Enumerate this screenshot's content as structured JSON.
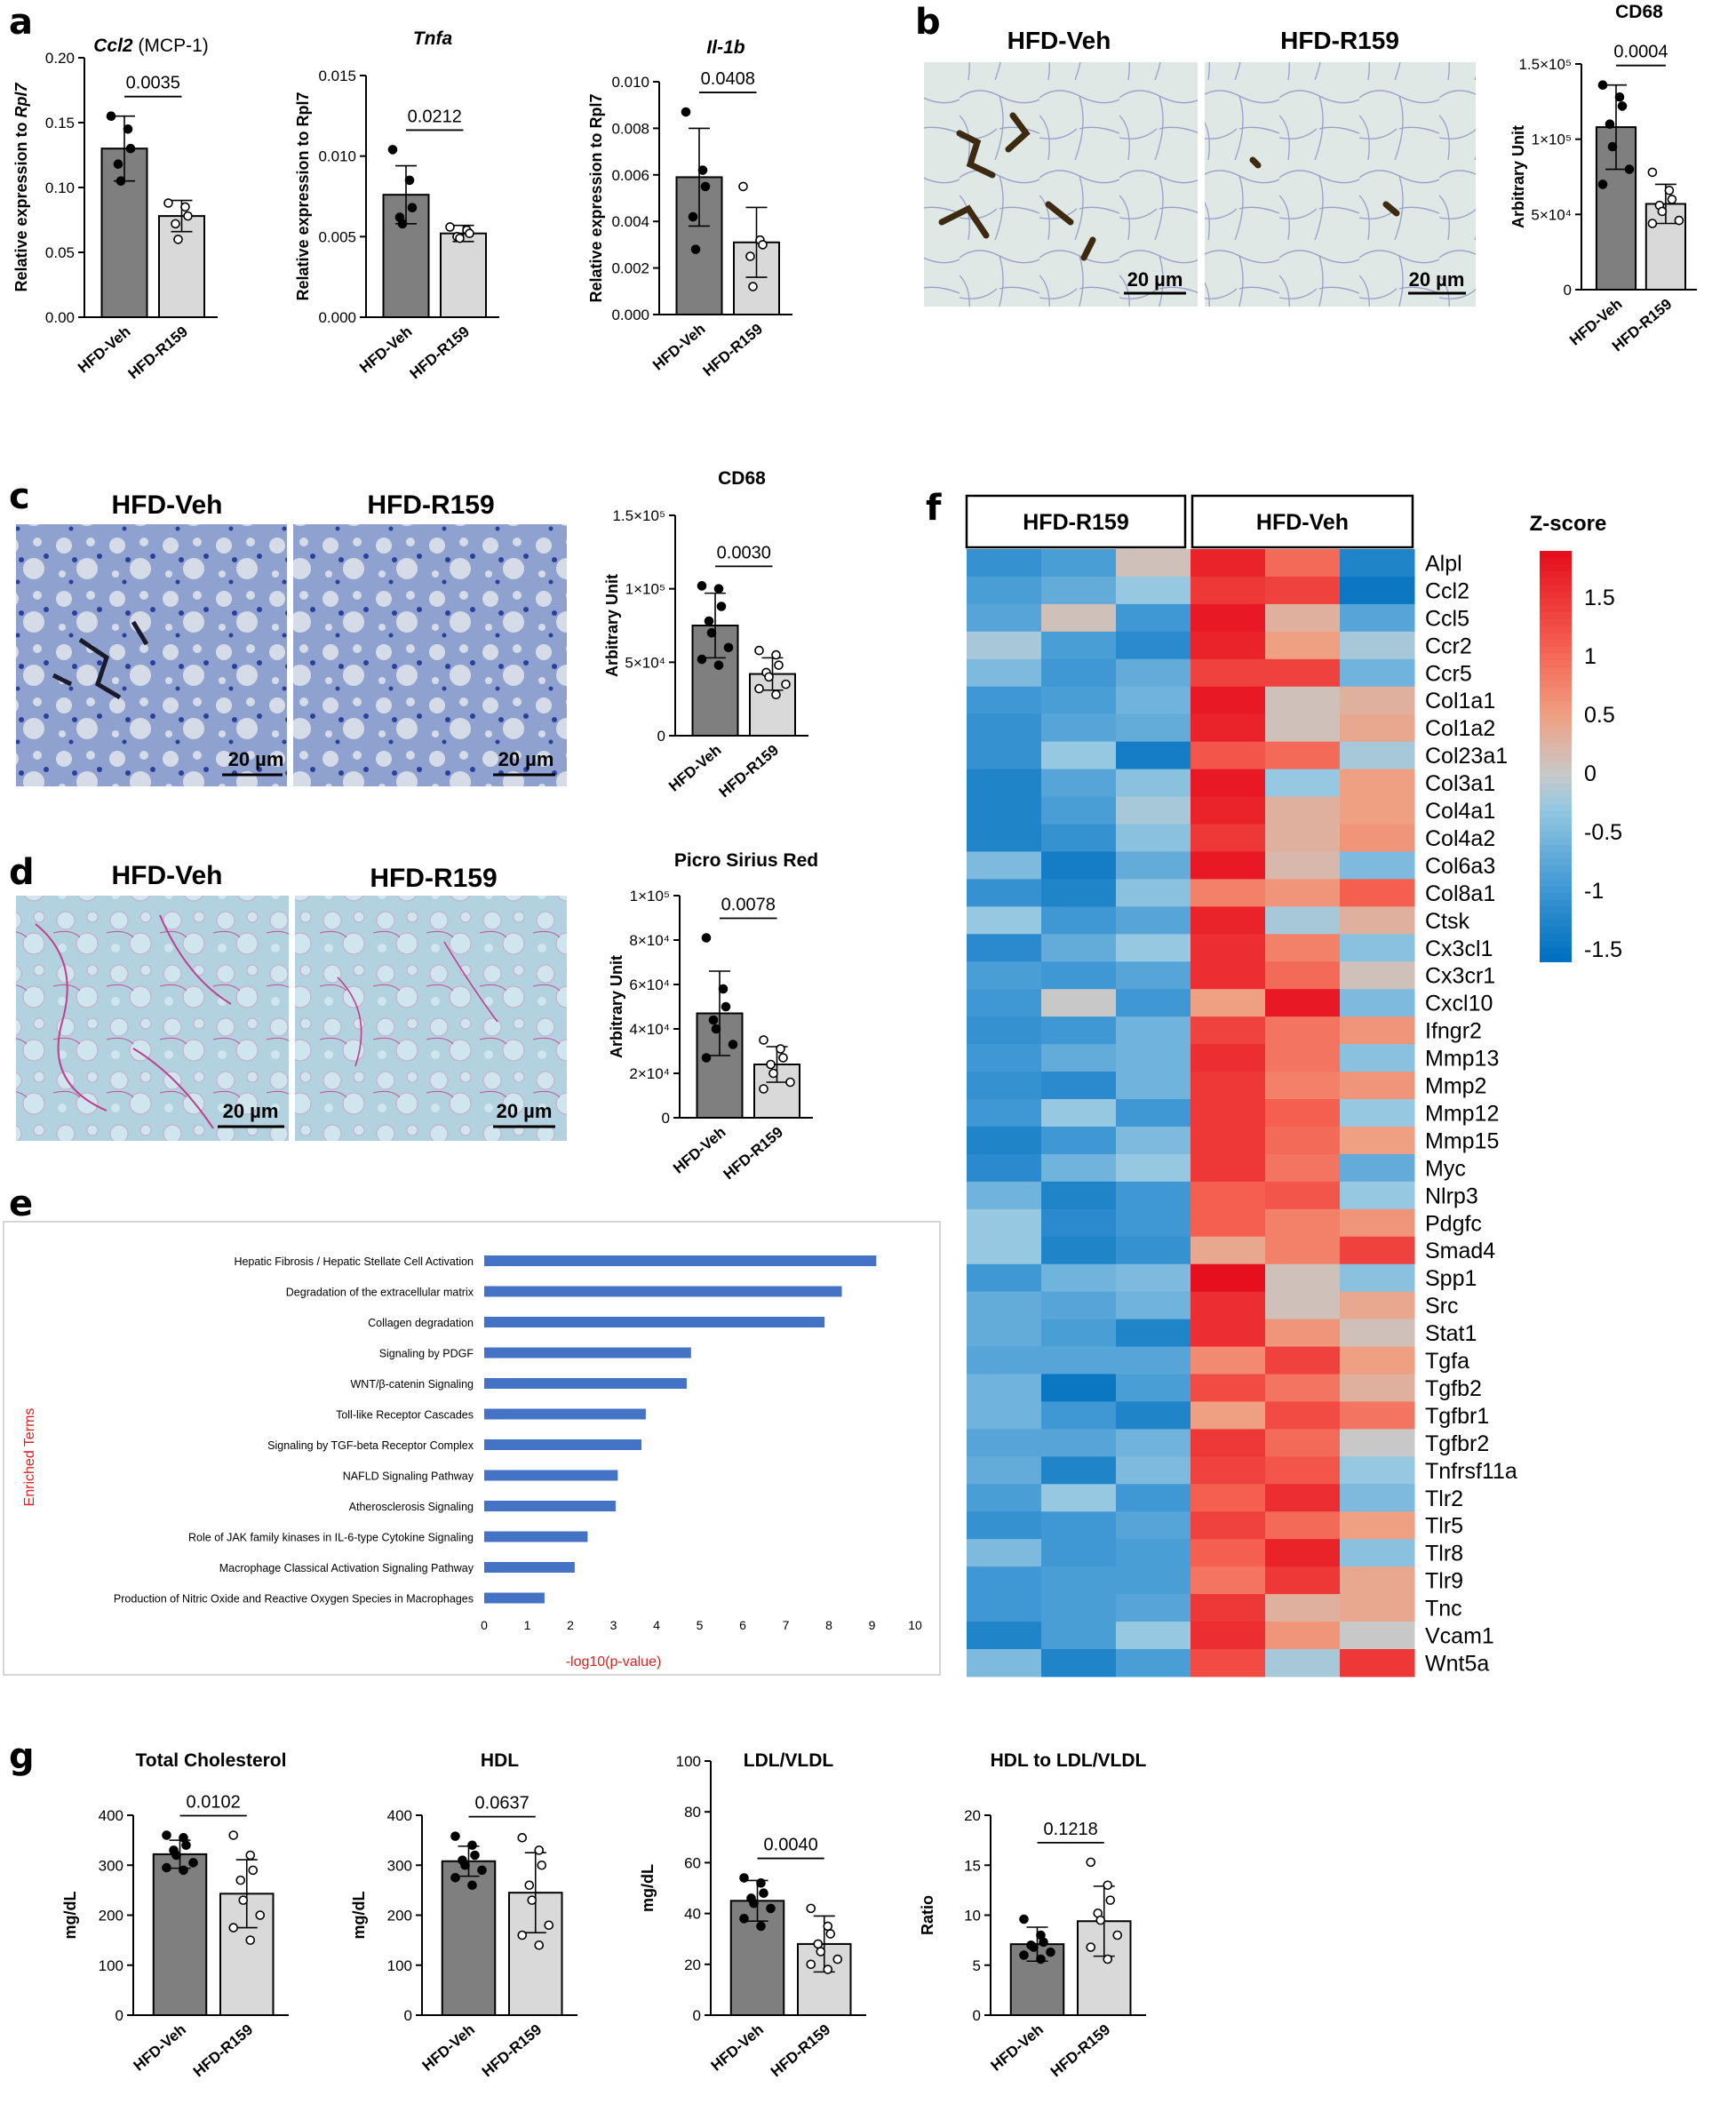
{
  "groups": [
    "HFD-Veh",
    "HFD-R159"
  ],
  "colors": {
    "veh_bar": "#7f7f7f",
    "r159_bar": "#d9d9d9",
    "enrich_bar": "#4472c4",
    "enrich_ylabel": "#e02020"
  },
  "panel_labels": {
    "a": "a",
    "b": "b",
    "c": "c",
    "d": "d",
    "e": "e",
    "f": "f",
    "g": "g"
  },
  "scale_bar": "20 µm",
  "histology": {
    "b": {
      "left": "HFD-Veh",
      "right": "HFD-R159",
      "scale": "20 µm"
    },
    "c": {
      "left": "HFD-Veh",
      "right": "HFD-R159",
      "scale": "20 µm"
    },
    "d": {
      "left": "HFD-Veh",
      "right": "HFD-R159",
      "scale": "20 µm"
    }
  },
  "chart_data": [
    {
      "id": "a1",
      "type": "bar",
      "title_italic": "Ccl2",
      "title_rest": " (MCP-1)",
      "ylabel": "Relative expression to ",
      "ylabel_italic": "Rpl7",
      "categories": [
        "HFD-Veh",
        "HFD-R159"
      ],
      "values": [
        0.13,
        0.078
      ],
      "sd": [
        0.025,
        0.012
      ],
      "ylim": [
        0,
        0.2
      ],
      "ticks": [
        "0.00",
        "0.05",
        "0.10",
        "0.15",
        "0.20"
      ],
      "p": "0.0035",
      "points": [
        [
          0.155,
          0.145,
          0.13,
          0.118,
          0.105
        ],
        [
          0.088,
          0.085,
          0.078,
          0.072,
          0.06
        ]
      ]
    },
    {
      "id": "a2",
      "type": "bar",
      "title_italic": "Tnfa",
      "title_rest": "",
      "ylabel": "Relative expression to Rpl7",
      "ylabel_italic": "",
      "categories": [
        "HFD-Veh",
        "HFD-R159"
      ],
      "values": [
        0.0076,
        0.0052
      ],
      "sd": [
        0.0018,
        0.0005
      ],
      "ylim": [
        0,
        0.015
      ],
      "ticks": [
        "0.000",
        "0.005",
        "0.010",
        "0.015"
      ],
      "p": "0.0212",
      "points": [
        [
          0.0104,
          0.0085,
          0.0068,
          0.0062,
          0.0058
        ],
        [
          0.0056,
          0.0054,
          0.0052,
          0.005,
          0.0049
        ]
      ]
    },
    {
      "id": "a3",
      "type": "bar",
      "title_italic": "Il-1b",
      "title_rest": "",
      "ylabel": "Relative expression to Rpl7",
      "ylabel_italic": "",
      "categories": [
        "HFD-Veh",
        "HFD-R159"
      ],
      "values": [
        0.0059,
        0.0031
      ],
      "sd": [
        0.0021,
        0.0015
      ],
      "ylim": [
        0,
        0.01
      ],
      "ticks": [
        "0.000",
        "0.002",
        "0.004",
        "0.006",
        "0.008",
        "0.010"
      ],
      "p": "0.0408",
      "points": [
        [
          0.0087,
          0.0062,
          0.0055,
          0.0042,
          0.0028
        ],
        [
          0.0055,
          0.0032,
          0.003,
          0.0025,
          0.0012
        ]
      ]
    },
    {
      "id": "b",
      "type": "bar",
      "title_italic": "",
      "title_rest": "CD68",
      "ylabel": "Arbitrary Unit",
      "ylabel_italic": "",
      "categories": [
        "HFD-Veh",
        "HFD-R159"
      ],
      "values": [
        108000,
        57000
      ],
      "sd": [
        28000,
        13000
      ],
      "ylim": [
        0,
        150000
      ],
      "ticks": [
        "0",
        "5×10⁴",
        "1×10⁵",
        "1.5×10⁵"
      ],
      "p": "0.0004",
      "points": [
        [
          136000,
          128000,
          122000,
          110000,
          95000,
          80000,
          70000
        ],
        [
          78000,
          66000,
          60000,
          56000,
          52000,
          46000,
          44000
        ]
      ]
    },
    {
      "id": "c",
      "type": "bar",
      "title_italic": "",
      "title_rest": "CD68",
      "ylabel": "Arbitrary Unit",
      "ylabel_italic": "",
      "categories": [
        "HFD-Veh",
        "HFD-R159"
      ],
      "values": [
        75000,
        42000
      ],
      "sd": [
        22000,
        11000
      ],
      "ylim": [
        0,
        150000
      ],
      "ticks": [
        "0",
        "5×10⁴",
        "1×10⁵",
        "1.5×10⁵"
      ],
      "p": "0.0030",
      "points": [
        [
          102000,
          100000,
          88000,
          78000,
          70000,
          60000,
          52000,
          48000
        ],
        [
          58000,
          55000,
          48000,
          43000,
          40000,
          35000,
          32000,
          28000
        ]
      ]
    },
    {
      "id": "d",
      "type": "bar",
      "title_italic": "",
      "title_rest": "Picro Sirius Red",
      "ylabel": "Arbitrary Unit",
      "ylabel_italic": "",
      "categories": [
        "HFD-Veh",
        "HFD-R159"
      ],
      "values": [
        47000,
        24000
      ],
      "sd": [
        19000,
        8000
      ],
      "ylim": [
        0,
        100000
      ],
      "ticks": [
        "0",
        "2×10⁴",
        "4×10⁴",
        "6×10⁴",
        "8×10⁴",
        "1×10⁵"
      ],
      "p": "0.0078",
      "points": [
        [
          81000,
          58000,
          50000,
          44000,
          40000,
          33000,
          27000
        ],
        [
          35000,
          31000,
          27000,
          24000,
          20000,
          16000,
          13000
        ]
      ]
    },
    {
      "id": "g1",
      "type": "bar",
      "title_italic": "",
      "title_rest": "Total Cholesterol",
      "ylabel": "mg/dL",
      "ylabel_italic": "",
      "categories": [
        "HFD-Veh",
        "HFD-R159"
      ],
      "values": [
        322,
        243
      ],
      "sd": [
        28,
        68
      ],
      "ylim": [
        0,
        400
      ],
      "ticks": [
        "0",
        "100",
        "200",
        "300",
        "400"
      ],
      "p": "0.0102",
      "points": [
        [
          360,
          355,
          340,
          330,
          320,
          305,
          295,
          290
        ],
        [
          360,
          320,
          290,
          270,
          230,
          200,
          175,
          150
        ]
      ]
    },
    {
      "id": "g2",
      "type": "bar",
      "title_italic": "",
      "title_rest": "HDL",
      "ylabel": "mg/dL",
      "ylabel_italic": "",
      "categories": [
        "HFD-Veh",
        "HFD-R159"
      ],
      "values": [
        308,
        245
      ],
      "sd": [
        30,
        80
      ],
      "ylim": [
        0,
        400
      ],
      "ticks": [
        "0",
        "100",
        "200",
        "300",
        "400"
      ],
      "p": "0.0637",
      "points": [
        [
          358,
          340,
          320,
          310,
          300,
          290,
          275,
          260
        ],
        [
          355,
          330,
          300,
          260,
          230,
          180,
          160,
          140
        ]
      ]
    },
    {
      "id": "g3",
      "type": "bar",
      "title_italic": "",
      "title_rest": "LDL/VLDL",
      "ylabel": "mg/dL",
      "ylabel_italic": "",
      "categories": [
        "HFD-Veh",
        "HFD-R159"
      ],
      "values": [
        45,
        28
      ],
      "sd": [
        8,
        11
      ],
      "ylim": [
        0,
        100
      ],
      "ticks": [
        "0",
        "20",
        "40",
        "60",
        "80",
        "100"
      ],
      "p": "0.0040",
      "points": [
        [
          54,
          52,
          48,
          46,
          44,
          42,
          38,
          35
        ],
        [
          42,
          35,
          32,
          28,
          25,
          22,
          20,
          18
        ]
      ]
    },
    {
      "id": "g4",
      "type": "bar",
      "title_italic": "",
      "title_rest": "HDL to LDL/VLDL",
      "ylabel": "Ratio",
      "ylabel_italic": "",
      "categories": [
        "HFD-Veh",
        "HFD-R159"
      ],
      "values": [
        7.1,
        9.4
      ],
      "sd": [
        1.7,
        3.5
      ],
      "ylim": [
        0,
        20
      ],
      "ticks": [
        "0",
        "5",
        "10",
        "15",
        "20"
      ],
      "p": "0.1218",
      "points": [
        [
          9.6,
          8,
          7.3,
          7,
          6.8,
          6.3,
          6,
          5.6
        ],
        [
          15.3,
          13,
          11.5,
          10.2,
          9.5,
          8,
          6.8,
          5.6
        ]
      ]
    },
    {
      "id": "e",
      "type": "hbar",
      "ylabel": "Enriched Terms",
      "xlabel": "-log10(p-value)",
      "xlim": [
        0,
        10
      ],
      "xticks": [
        "0",
        "1",
        "2",
        "3",
        "4",
        "5",
        "6",
        "7",
        "8",
        "9",
        "10"
      ],
      "categories": [
        "Hepatic Fibrosis / Hepatic Stellate Cell Activation",
        "Degradation of the extracellular matrix",
        "Collagen degradation",
        "Signaling by PDGF",
        "WNT/β-catenin Signaling",
        "Toll-like Receptor Cascades",
        "Signaling by TGF-beta Receptor Complex",
        "NAFLD Signaling Pathway",
        "Atherosclerosis Signaling",
        "Role of JAK family kinases in IL-6-type Cytokine Signaling",
        "Macrophage Classical Activation Signaling Pathway",
        "Production of Nitric Oxide and Reactive Oxygen Species in Macrophages"
      ],
      "values": [
        9.1,
        8.3,
        7.9,
        4.8,
        4.7,
        3.75,
        3.65,
        3.1,
        3.05,
        2.4,
        2.1,
        1.4
      ]
    },
    {
      "id": "f",
      "type": "heatmap",
      "group_labels": [
        "HFD-R159",
        "HFD-Veh"
      ],
      "legend_title": "Z-score",
      "legend_ticks": [
        "1.5",
        "1",
        "0.5",
        "0",
        "-0.5",
        "-1",
        "-1.5"
      ],
      "zlim": [
        -1.6,
        1.9
      ],
      "genes": [
        "Alpl",
        "Ccl2",
        "Ccl5",
        "Ccr2",
        "Ccr5",
        "Col1a1",
        "Col1a2",
        "Col23a1",
        "Col3a1",
        "Col4a1",
        "Col4a2",
        "Col6a3",
        "Col8a1",
        "Ctsk",
        "Cx3cl1",
        "Cx3cr1",
        "Cxcl10",
        "Ifngr2",
        "Mmp13",
        "Mmp2",
        "Mmp12",
        "Mmp15",
        "Myc",
        "Nlrp3",
        "Pdgfc",
        "Smad4",
        "Spp1",
        "Src",
        "Stat1",
        "Tgfa",
        "Tgfb2",
        "Tgfbr1",
        "Tgfbr2",
        "Tnfrsf11a",
        "Tlr2",
        "Tlr5",
        "Tlr8",
        "Tlr9",
        "Tnc",
        "Vcam1",
        "Wnt5a"
      ],
      "values": [
        [
          -1.1,
          -0.9,
          0.1,
          1.7,
          1.0,
          -1.3
        ],
        [
          -0.9,
          -0.7,
          -0.3,
          1.5,
          1.4,
          -1.5
        ],
        [
          -0.8,
          0.1,
          -1.0,
          1.8,
          0.3,
          -0.8
        ],
        [
          -0.2,
          -0.9,
          -1.2,
          1.7,
          0.5,
          -0.2
        ],
        [
          -0.5,
          -1.0,
          -0.7,
          1.4,
          1.4,
          -0.6
        ],
        [
          -1.0,
          -0.9,
          -0.6,
          1.8,
          0.1,
          0.3
        ],
        [
          -1.1,
          -0.8,
          -0.7,
          1.7,
          0.1,
          0.4
        ],
        [
          -1.1,
          -0.3,
          -1.4,
          1.2,
          1.0,
          -0.2
        ],
        [
          -1.3,
          -0.8,
          -0.4,
          1.8,
          -0.3,
          0.5
        ],
        [
          -1.3,
          -0.9,
          -0.2,
          1.7,
          0.3,
          0.5
        ],
        [
          -1.3,
          -1.1,
          -0.4,
          1.5,
          0.3,
          0.6
        ],
        [
          -0.5,
          -1.4,
          -0.7,
          1.8,
          0.2,
          -0.5
        ],
        [
          -1.1,
          -1.3,
          -0.4,
          0.8,
          0.6,
          1.1
        ],
        [
          -0.3,
          -1.0,
          -0.8,
          1.7,
          -0.2,
          0.3
        ],
        [
          -1.2,
          -0.7,
          -0.3,
          1.6,
          0.8,
          -0.4
        ],
        [
          -0.9,
          -1.0,
          -0.8,
          1.6,
          1.0,
          0.1
        ],
        [
          -1.0,
          0.0,
          -1.0,
          0.5,
          1.8,
          -0.5
        ],
        [
          -1.1,
          -1.0,
          -0.6,
          1.4,
          0.9,
          0.6
        ],
        [
          -1.0,
          -0.7,
          -0.6,
          1.6,
          0.9,
          -0.4
        ],
        [
          -1.1,
          -1.2,
          -0.6,
          1.5,
          0.8,
          0.6
        ],
        [
          -1.0,
          -0.3,
          -1.0,
          1.5,
          1.1,
          -0.3
        ],
        [
          -1.3,
          -1.0,
          -0.5,
          1.5,
          1.0,
          0.5
        ],
        [
          -1.2,
          -0.6,
          -0.3,
          1.5,
          0.9,
          -0.7
        ],
        [
          -0.6,
          -1.3,
          -1.0,
          1.1,
          1.2,
          -0.3
        ],
        [
          -0.3,
          -1.2,
          -1.0,
          1.1,
          0.8,
          0.6
        ],
        [
          -0.3,
          -1.3,
          -1.1,
          0.4,
          0.8,
          1.4
        ],
        [
          -1.0,
          -0.6,
          -0.5,
          1.9,
          0.1,
          -0.4
        ],
        [
          -0.7,
          -0.8,
          -0.6,
          1.6,
          0.1,
          0.4
        ],
        [
          -0.7,
          -0.9,
          -1.3,
          1.6,
          0.6,
          0.1
        ],
        [
          -0.8,
          -0.8,
          -0.8,
          0.7,
          1.4,
          0.5
        ],
        [
          -0.6,
          -1.5,
          -0.9,
          1.3,
          0.9,
          0.3
        ],
        [
          -0.6,
          -1.0,
          -1.3,
          0.5,
          1.3,
          0.9
        ],
        [
          -0.8,
          -0.8,
          -0.6,
          1.5,
          1.0,
          0.0
        ],
        [
          -0.7,
          -1.3,
          -0.5,
          1.4,
          1.2,
          -0.3
        ],
        [
          -0.9,
          -0.3,
          -1.0,
          1.1,
          1.6,
          -0.5
        ],
        [
          -1.1,
          -1.0,
          -0.8,
          1.4,
          1.0,
          0.5
        ],
        [
          -0.5,
          -1.0,
          -0.9,
          1.1,
          1.7,
          -0.4
        ],
        [
          -1.0,
          -0.9,
          -0.9,
          0.9,
          1.5,
          0.4
        ],
        [
          -1.0,
          -0.9,
          -0.8,
          1.5,
          0.3,
          0.4
        ],
        [
          -1.3,
          -0.9,
          -0.3,
          1.6,
          0.6,
          0.0
        ],
        [
          -0.5,
          -1.3,
          -0.9,
          1.3,
          -0.2,
          1.5
        ]
      ]
    }
  ]
}
